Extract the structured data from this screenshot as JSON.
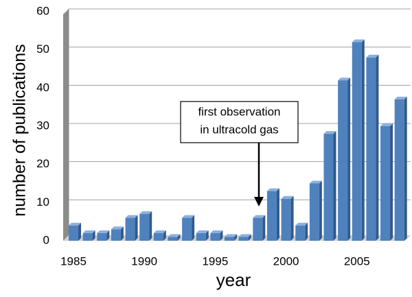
{
  "chart_data": {
    "type": "bar",
    "x": [
      1985,
      1986,
      1987,
      1988,
      1989,
      1990,
      1991,
      1992,
      1993,
      1994,
      1995,
      1996,
      1997,
      1998,
      1999,
      2000,
      2001,
      2002,
      2003,
      2004,
      2005,
      2006,
      2007,
      2008
    ],
    "values": [
      4,
      2,
      2,
      3,
      6,
      7,
      2,
      1,
      6,
      2,
      2,
      1,
      1,
      6,
      13,
      11,
      4,
      15,
      28,
      42,
      52,
      48,
      30,
      37
    ],
    "color": "#4f81bd",
    "xlim": [
      1984.5,
      2008.5
    ],
    "xticks": [
      1985,
      1990,
      1995,
      2000,
      2005
    ],
    "ylim": [
      0,
      60
    ],
    "yticks": [
      0,
      10,
      20,
      30,
      40,
      50,
      60
    ],
    "grid": true,
    "xlabel": "year",
    "ylabel": "number of publications",
    "annotation": [
      "first observation",
      "in ultracold gas"
    ]
  }
}
